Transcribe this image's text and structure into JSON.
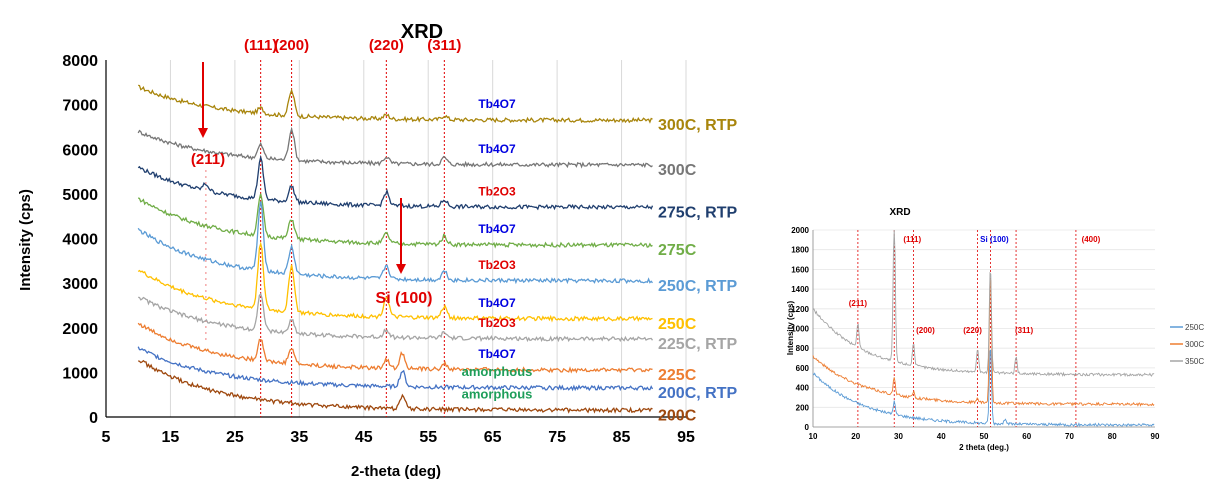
{
  "chart_data": [
    {
      "type": "line",
      "title": "XRD",
      "xlabel": "2-theta (deg)",
      "ylabel": "Intensity (cps)",
      "xlim": [
        5,
        95
      ],
      "ylim": [
        0,
        8000
      ],
      "xticks": [
        "5",
        "15",
        "25",
        "35",
        "45",
        "55",
        "65",
        "75",
        "85",
        "95"
      ],
      "yticks": [
        "0",
        "1000",
        "2000",
        "3000",
        "4000",
        "5000",
        "6000",
        "7000",
        "8000"
      ],
      "grid": "vertical",
      "peak_lines": [
        {
          "x": 29,
          "label": "(111)"
        },
        {
          "x": 33.8,
          "label": "(200)"
        },
        {
          "x": 48.5,
          "label": "(220)"
        },
        {
          "x": 57.5,
          "label": "(311)"
        }
      ],
      "extra_marks": [
        {
          "x": 20.5,
          "label": "(211)"
        },
        {
          "label": "Si (100)"
        }
      ],
      "series": [
        {
          "name": "300C, RTP",
          "color": "#A8850C",
          "baseline": 6650,
          "start": 7400,
          "phase": "Tb4O7",
          "peaks": [
            [
              29,
              120
            ],
            [
              33.8,
              550
            ],
            [
              48.5,
              90
            ],
            [
              57.5,
              90
            ]
          ]
        },
        {
          "name": "300C",
          "color": "#767676",
          "baseline": 5650,
          "start": 6400,
          "phase": "Tb4O7",
          "peaks": [
            [
              29,
              300
            ],
            [
              33.8,
              700
            ],
            [
              48.5,
              150
            ],
            [
              57.5,
              150
            ]
          ]
        },
        {
          "name": "275C, RTP",
          "color": "#1F3E6E",
          "baseline": 4700,
          "start": 5600,
          "phase": "Tb2O3",
          "peaks": [
            [
              20.5,
              150
            ],
            [
              29,
              900
            ],
            [
              33.8,
              350
            ],
            [
              48.5,
              300
            ],
            [
              57.5,
              150
            ]
          ]
        },
        {
          "name": "275C",
          "color": "#70AD47",
          "baseline": 3850,
          "start": 4900,
          "phase": "Tb4O7",
          "peaks": [
            [
              29,
              900
            ],
            [
              33.8,
              450
            ],
            [
              48.5,
              220
            ],
            [
              57.5,
              180
            ]
          ]
        },
        {
          "name": "250C, RTP",
          "color": "#5B9BD5",
          "baseline": 3050,
          "start": 4200,
          "phase": "Tb2O3",
          "peaks": [
            [
              29,
              1500
            ],
            [
              33.8,
              600
            ],
            [
              48.5,
              300
            ],
            [
              57.5,
              200
            ]
          ]
        },
        {
          "name": "250C",
          "color": "#FFC000",
          "baseline": 2200,
          "start": 3300,
          "phase": "Tb4O7",
          "peaks": [
            [
              29,
              1500
            ],
            [
              33.8,
              1050
            ],
            [
              48.5,
              450
            ],
            [
              57.5,
              250
            ]
          ]
        },
        {
          "name": "225C, RTP",
          "color": "#A5A5A5",
          "baseline": 1750,
          "start": 2700,
          "phase": "Tb2O3",
          "peaks": [
            [
              29,
              850
            ],
            [
              33.8,
              300
            ],
            [
              48.5,
              180
            ],
            [
              57.5,
              120
            ]
          ]
        },
        {
          "name": "225C",
          "color": "#ED7D31",
          "baseline": 1050,
          "start": 2100,
          "phase": "Tb4O7",
          "peaks": [
            [
              29,
              500
            ],
            [
              33.8,
              350
            ],
            [
              48.5,
              200
            ],
            [
              51,
              350
            ],
            [
              57.5,
              120
            ]
          ]
        },
        {
          "name": "200C, RTP",
          "color": "#4472C4",
          "baseline": 650,
          "start": 1550,
          "phase": "amorphous",
          "peaks": [
            [
              51,
              350
            ]
          ]
        },
        {
          "name": "200C",
          "color": "#9E480E",
          "baseline": 150,
          "start": 1300,
          "phase": "amorphous",
          "peaks": [
            [
              51,
              300
            ]
          ]
        }
      ]
    },
    {
      "type": "line",
      "title": "XRD",
      "xlabel": "2 theta (deg.)",
      "ylabel": "Intensity (cps)",
      "xlim": [
        10,
        90
      ],
      "ylim": [
        0,
        2000
      ],
      "xticks": [
        "10",
        "20",
        "30",
        "40",
        "50",
        "60",
        "70",
        "80",
        "90"
      ],
      "yticks": [
        "0",
        "200",
        "400",
        "600",
        "800",
        "1000",
        "1200",
        "1400",
        "1600",
        "1800",
        "2000"
      ],
      "peak_lines": [
        {
          "x": 20.5,
          "label": "(211)"
        },
        {
          "x": 29,
          "label": "(111)"
        },
        {
          "x": 33.5,
          "label": "(200)"
        },
        {
          "x": 48.5,
          "label": "(220)"
        },
        {
          "x": 51.5,
          "label": "Si (100)"
        },
        {
          "x": 57.5,
          "label": "(311)"
        },
        {
          "x": 71.5,
          "label": "(400)"
        }
      ],
      "legend_position": "right",
      "series": [
        {
          "name": "250C",
          "color": "#5B9BD5",
          "start": 550,
          "baseline": 20,
          "peaks": [
            [
              29,
              130
            ],
            [
              51.5,
              800
            ],
            [
              55,
              60
            ]
          ]
        },
        {
          "name": "300C",
          "color": "#ED7D31",
          "start": 720,
          "baseline": 230,
          "peaks": [
            [
              29,
              170
            ],
            [
              33.5,
              60
            ],
            [
              48.5,
              40
            ],
            [
              51.5,
              1350
            ]
          ]
        },
        {
          "name": "350C",
          "color": "#A5A5A5",
          "start": 1200,
          "baseline": 530,
          "peaks": [
            [
              20.5,
              250
            ],
            [
              29,
              1500
            ],
            [
              33.5,
              230
            ],
            [
              48.5,
              250
            ],
            [
              51.5,
              1100
            ],
            [
              57.5,
              170
            ]
          ]
        }
      ]
    }
  ]
}
